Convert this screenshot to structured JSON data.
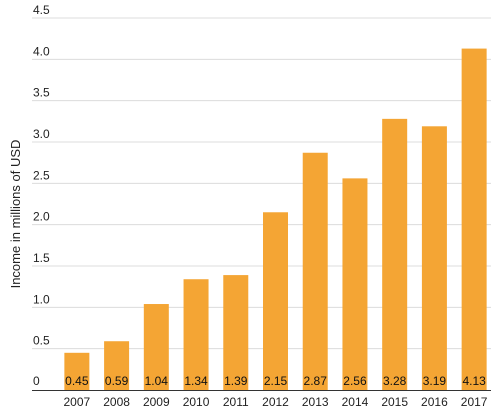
{
  "chart_data": {
    "type": "bar",
    "categories": [
      "2007",
      "2008",
      "2009",
      "2010",
      "2011",
      "2012",
      "2013",
      "2014",
      "2015",
      "2016",
      "2017"
    ],
    "values": [
      0.45,
      0.59,
      1.04,
      1.34,
      1.39,
      2.15,
      2.87,
      2.56,
      3.28,
      3.19,
      4.13
    ],
    "value_labels": [
      "0.45",
      "0.59",
      "1.04",
      "1.34",
      "1.39",
      "2.15",
      "2.87",
      "2.56",
      "3.28",
      "3.19",
      "4.13"
    ],
    "ylabel": "Income in millions of USD",
    "ylim": [
      0,
      4.5
    ],
    "yticks": [
      {
        "value": 0,
        "label": "0"
      },
      {
        "value": 0.5,
        "label": "0.5"
      },
      {
        "value": 1.0,
        "label": "1.0"
      },
      {
        "value": 1.5,
        "label": "1.5"
      },
      {
        "value": 2.0,
        "label": "2.0"
      },
      {
        "value": 2.5,
        "label": "2.5"
      },
      {
        "value": 3.0,
        "label": "3.0"
      },
      {
        "value": 3.5,
        "label": "3.5"
      },
      {
        "value": 4.0,
        "label": "4.0"
      },
      {
        "value": 4.5,
        "label": "4.5"
      }
    ],
    "grid": true,
    "legend": "none",
    "colors": {
      "bar": "#f4a534",
      "grid": "#dcdcdc",
      "axis": "#333333"
    }
  }
}
